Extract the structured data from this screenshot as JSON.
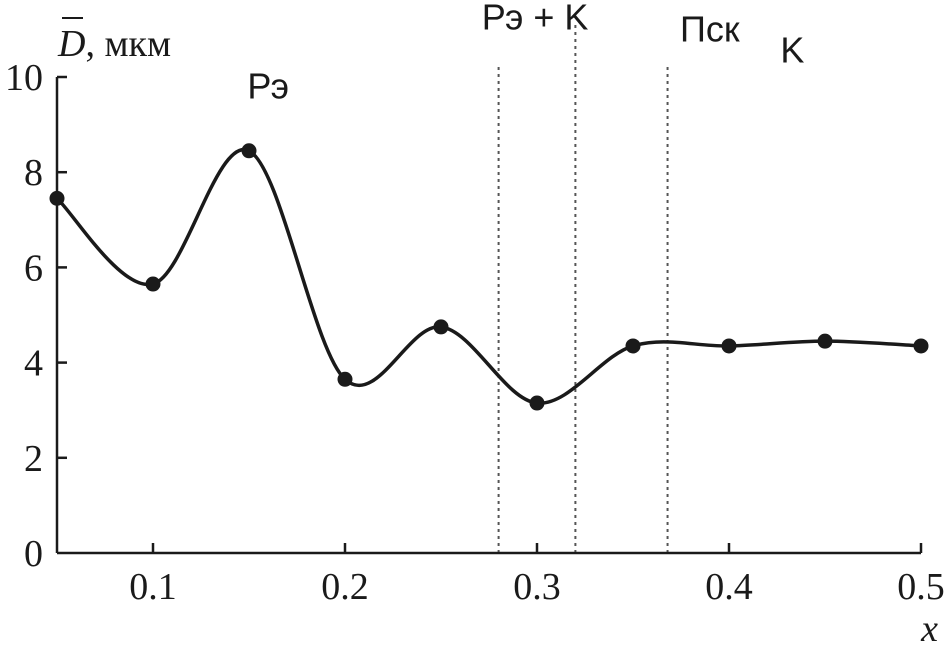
{
  "chart_data": {
    "type": "line",
    "xlabel": "x",
    "ylabel_symbol": "D",
    "ylabel_unit": ", мкм",
    "xlim": [
      0.05,
      0.5
    ],
    "ylim": [
      0,
      10
    ],
    "x_ticks": [
      {
        "value": 0.1,
        "label": "0.1"
      },
      {
        "value": 0.2,
        "label": "0.2"
      },
      {
        "value": 0.3,
        "label": "0.3"
      },
      {
        "value": 0.4,
        "label": "0.4"
      },
      {
        "value": 0.5,
        "label": "0.5"
      }
    ],
    "y_ticks": [
      {
        "value": 0,
        "label": "0"
      },
      {
        "value": 2,
        "label": "2"
      },
      {
        "value": 4,
        "label": "4"
      },
      {
        "value": 6,
        "label": "6"
      },
      {
        "value": 8,
        "label": "8"
      },
      {
        "value": 10,
        "label": "10"
      }
    ],
    "grid": false,
    "legend": "none",
    "series": [
      {
        "x": [
          0.05,
          0.1,
          0.15,
          0.2,
          0.25,
          0.3,
          0.35,
          0.4,
          0.45,
          0.5
        ],
        "y": [
          7.45,
          5.65,
          8.45,
          3.65,
          4.75,
          3.15,
          4.35,
          4.35,
          4.45,
          4.35
        ]
      }
    ],
    "boundaries": [
      0.28,
      0.32,
      0.368
    ],
    "regions": [
      {
        "label": "Рэ",
        "x": 0.16,
        "y": 9.55
      },
      {
        "label": "Рэ + K",
        "x": 0.299,
        "y": 11.0
      },
      {
        "label": "Пск",
        "x": 0.39,
        "y": 10.75
      },
      {
        "label": "K",
        "x": 0.433,
        "y": 10.3
      }
    ]
  }
}
